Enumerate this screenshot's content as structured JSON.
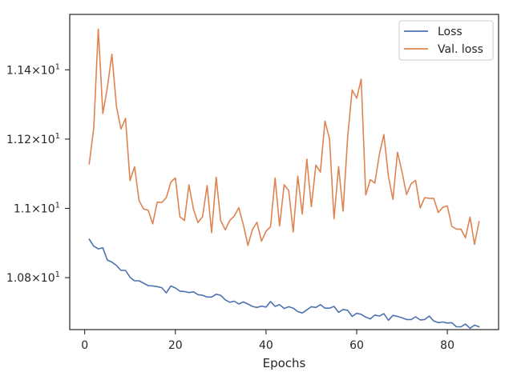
{
  "chart_data": {
    "type": "line",
    "title": "",
    "xlabel": "Epochs",
    "ylabel": "",
    "xlim": [
      -3.3,
      91.3
    ],
    "ylim": [
      10.65,
      11.56
    ],
    "x_ticks": [
      0,
      20,
      40,
      60,
      80
    ],
    "x_tick_labels": [
      "0",
      "20",
      "40",
      "60",
      "80"
    ],
    "y_ticks": [
      10.8,
      11.0,
      11.2,
      11.4
    ],
    "y_tick_labels": [
      {
        "mantissa": "1.08",
        "times": "×",
        "base": "10",
        "exp": "1"
      },
      {
        "mantissa": "1.1",
        "times": "×",
        "base": "10",
        "exp": "1"
      },
      {
        "mantissa": "1.12",
        "times": "×",
        "base": "10",
        "exp": "1"
      },
      {
        "mantissa": "1.14",
        "times": "×",
        "base": "10",
        "exp": "1"
      }
    ],
    "grid": false,
    "legend_position": "top-right",
    "series": [
      {
        "name": "Loss",
        "color": "#4c72b0",
        "x": [
          1,
          2,
          3,
          4,
          5,
          6,
          7,
          8,
          9,
          10,
          11,
          12,
          13,
          14,
          15,
          16,
          17,
          18,
          19,
          20,
          21,
          22,
          23,
          24,
          25,
          26,
          27,
          28,
          29,
          30,
          31,
          32,
          33,
          34,
          35,
          36,
          37,
          38,
          39,
          40,
          41,
          42,
          43,
          44,
          45,
          46,
          47,
          48,
          49,
          50,
          51,
          52,
          53,
          54,
          55,
          56,
          57,
          58,
          59,
          60,
          61,
          62,
          63,
          64,
          65,
          66,
          67,
          68,
          69,
          70,
          71,
          72,
          73,
          74,
          75,
          76,
          77,
          78,
          79,
          80,
          81,
          82,
          83,
          84,
          85,
          86,
          87
        ],
        "values": [
          10.911,
          10.891,
          10.883,
          10.886,
          10.851,
          10.845,
          10.835,
          10.821,
          10.821,
          10.801,
          10.791,
          10.791,
          10.784,
          10.777,
          10.776,
          10.774,
          10.771,
          10.756,
          10.776,
          10.77,
          10.761,
          10.76,
          10.757,
          10.759,
          10.751,
          10.749,
          10.744,
          10.744,
          10.752,
          10.749,
          10.736,
          10.729,
          10.732,
          10.724,
          10.73,
          10.724,
          10.717,
          10.714,
          10.718,
          10.715,
          10.731,
          10.717,
          10.722,
          10.711,
          10.716,
          10.712,
          10.702,
          10.698,
          10.707,
          10.716,
          10.714,
          10.722,
          10.712,
          10.712,
          10.717,
          10.7,
          10.708,
          10.706,
          10.688,
          10.697,
          10.694,
          10.686,
          10.681,
          10.692,
          10.689,
          10.696,
          10.677,
          10.691,
          10.688,
          10.684,
          10.679,
          10.679,
          10.687,
          10.678,
          10.679,
          10.689,
          10.675,
          10.67,
          10.672,
          10.669,
          10.67,
          10.658,
          10.658,
          10.666,
          10.654,
          10.663,
          10.658
        ]
      },
      {
        "name": "Val. loss",
        "color": "#dd8452",
        "x": [
          1,
          2,
          3,
          4,
          5,
          6,
          7,
          8,
          9,
          10,
          11,
          12,
          13,
          14,
          15,
          16,
          17,
          18,
          19,
          20,
          21,
          22,
          23,
          24,
          25,
          26,
          27,
          28,
          29,
          30,
          31,
          32,
          33,
          34,
          35,
          36,
          37,
          38,
          39,
          40,
          41,
          42,
          43,
          44,
          45,
          46,
          47,
          48,
          49,
          50,
          51,
          52,
          53,
          54,
          55,
          56,
          57,
          58,
          59,
          60,
          61,
          62,
          63,
          64,
          65,
          66,
          67,
          68,
          69,
          70,
          71,
          72,
          73,
          74,
          75,
          76,
          77,
          78,
          79,
          80,
          81,
          82,
          83,
          84,
          85,
          86,
          87
        ],
        "values": [
          11.128,
          11.233,
          11.518,
          11.274,
          11.348,
          11.445,
          11.294,
          11.229,
          11.26,
          11.08,
          11.12,
          11.022,
          10.998,
          10.995,
          10.955,
          11.018,
          11.017,
          11.031,
          11.076,
          11.088,
          10.976,
          10.965,
          11.068,
          10.997,
          10.959,
          10.976,
          11.066,
          10.93,
          11.09,
          10.965,
          10.938,
          10.965,
          10.978,
          11.002,
          10.953,
          10.893,
          10.939,
          10.96,
          10.905,
          10.934,
          10.947,
          11.088,
          10.949,
          11.068,
          11.051,
          10.932,
          11.093,
          10.983,
          11.142,
          11.005,
          11.125,
          11.105,
          11.252,
          11.201,
          10.97,
          11.121,
          10.992,
          11.205,
          11.342,
          11.318,
          11.373,
          11.039,
          11.083,
          11.073,
          11.156,
          11.213,
          11.092,
          11.026,
          11.162,
          11.106,
          11.04,
          11.071,
          11.081,
          11.001,
          11.031,
          11.029,
          11.029,
          10.988,
          11.003,
          11.007,
          10.948,
          10.94,
          10.94,
          10.915,
          10.975,
          10.896,
          10.962
        ]
      }
    ]
  }
}
